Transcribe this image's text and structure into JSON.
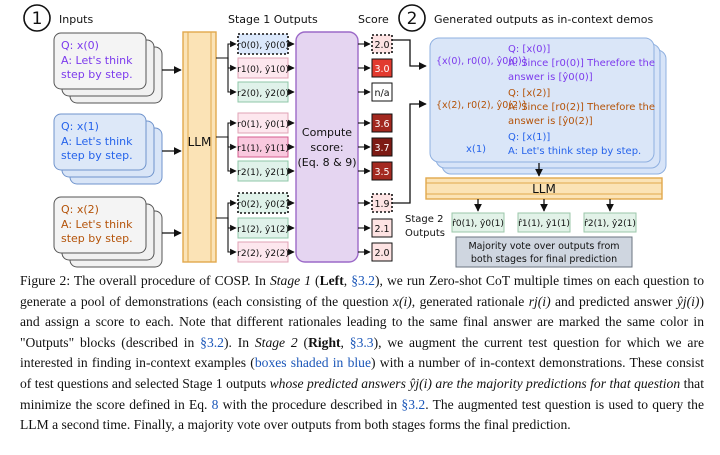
{
  "figure": {
    "step1_number": "1",
    "step2_number": "2",
    "inputs_label": "Inputs",
    "stage1_label": "Stage 1 Outputs",
    "score_label": "Score",
    "generated_label": "Generated outputs as in-context demos",
    "llm_label": "LLM",
    "compute_score": [
      "Compute",
      "score:",
      "(Eq. 8 & 9)"
    ],
    "questions": [
      {
        "q": "Q: x(0)",
        "a1": "A: Let's think",
        "a2": "step by step.",
        "color": "#7c3aed"
      },
      {
        "q": "Q: x(1)",
        "a1": "A: Let's think",
        "a2": "step by step.",
        "color": "#2563eb"
      },
      {
        "q": "Q: x(2)",
        "a1": "A: Let's think",
        "a2": "step by step.",
        "color": "#b45309"
      }
    ],
    "outputs": [
      {
        "label": "r0(0), ŷ0(0)",
        "score": "2.0"
      },
      {
        "label": "r1(0), ŷ1(0)",
        "score": "3.0"
      },
      {
        "label": "r2(0), ŷ2(0)",
        "score": "n/a"
      },
      {
        "label": "r0(1), ŷ0(1)",
        "score": "3.6"
      },
      {
        "label": "r1(1), ŷ1(1)",
        "score": "3.7"
      },
      {
        "label": "r2(1), ŷ2(1)",
        "score": "3.5"
      },
      {
        "label": "r0(2), ŷ0(2)",
        "score": "1.9"
      },
      {
        "label": "r1(2), ŷ1(2)",
        "score": "2.1"
      },
      {
        "label": "r2(2), ŷ2(2)",
        "score": "2.0"
      }
    ],
    "demos": [
      {
        "set": "{x(0), r0(0), ŷ0(0)}",
        "q": "Q: [x(0)]",
        "a1": "A: Since [r0(0)] Therefore the",
        "a2": "answer is [ŷ0(0)]"
      },
      {
        "set": "{x(2), r0(2), ŷ0(2)}",
        "q": "Q: [x(2)]",
        "a1": "A: Since [r0(2)] Therefore the",
        "a2": "answer is [ŷ0(2)]"
      }
    ],
    "test": {
      "var": "x(1)",
      "q": "Q: [x(1)]",
      "a": "A: Let's think step by step."
    },
    "stage2_label": [
      "Stage 2",
      "Outputs"
    ],
    "stage2_outputs": [
      "r̂0(1), ŷ0(1)",
      "r̂1(1), ŷ1(1)",
      "r̂2(1), ŷ2(1)"
    ],
    "majority_vote": [
      "Majority vote over outputs from",
      "both stages for final prediction"
    ],
    "colors": {
      "llm": "#fbe3b6",
      "llm_border": "#e2a84c",
      "compute": "#e5d5f1",
      "compute_border": "#9c6ac8",
      "demo_bg": "#d7e4f8",
      "demo_border": "#8fb0e0"
    }
  },
  "caption": {
    "prefix": "Figure 2: The overall procedure of COSP. In ",
    "stage1": "Stage 1",
    "stage1_paren": " (",
    "left": "Left",
    "sec32a": "§3.2",
    "text1": "), we run Zero-shot CoT multiple times on each question to generate a pool of demonstrations (each consisting of the question ",
    "x_i": "x(i)",
    "text2": ", generated rationale ",
    "r_j": "rj(i)",
    "text3": " and predicted answer ",
    "y_j": "ŷj(i)",
    "text4": ") and assign a score to each. Note that different rationales leading to the same final answer are marked the same color in \"Outputs\" blocks (described in ",
    "sec32b": "§3.2",
    "text5": "). In ",
    "stage2": "Stage 2",
    "text6": " (",
    "right": "Right",
    "text6b": ", ",
    "sec33": "§3.3",
    "text7": "), we augment the current test question for which we are interested in finding in-context examples (",
    "boxes": "boxes shaded in blue",
    "text8": ") with a number of in-context demonstrations. These consist of test questions and selected Stage 1 outputs ",
    "italic1": "whose predicted answers ",
    "y_j2": "ŷj(i)",
    "italic2": " are the majority predictions for that question",
    "text9": " that minimize the score defined in Eq. ",
    "eq8": "8",
    "text10": " with the procedure described in ",
    "sec32c": "§3.2",
    "text11": ". The augmented test question is used to query the LLM a second time. Finally, a majority vote over outputs from both stages forms the final prediction."
  }
}
